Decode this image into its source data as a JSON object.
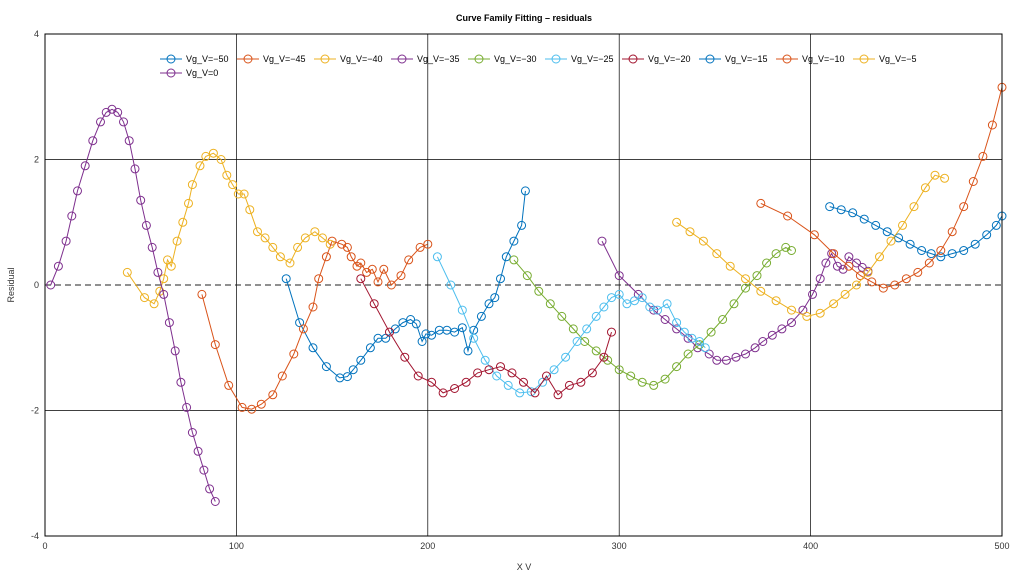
{
  "chart_data": {
    "type": "line",
    "title": "Curve Family Fitting – residuals",
    "xlabel": "X V",
    "ylabel": "Residual",
    "xlim": [
      0,
      500
    ],
    "ylim": [
      -4,
      4
    ],
    "xticks": [
      0,
      100,
      200,
      300,
      400,
      500
    ],
    "yticks": [
      -4,
      -2,
      0,
      2,
      4
    ],
    "grid": true,
    "legend_position": "top",
    "series": [
      {
        "name": "Vg_V=−50",
        "color": "#0072bd",
        "x": [
          126,
          133,
          140,
          147,
          154,
          158,
          161,
          165,
          170,
          174,
          178,
          183,
          187,
          191,
          194,
          197,
          199,
          202,
          206,
          210,
          214,
          218,
          221,
          224,
          228,
          232,
          235,
          238,
          241,
          245,
          249,
          251
        ],
        "y": [
          0.1,
          -0.6,
          -1.0,
          -1.3,
          -1.48,
          -1.46,
          -1.35,
          -1.2,
          -1.0,
          -0.85,
          -0.85,
          -0.7,
          -0.6,
          -0.55,
          -0.62,
          -0.9,
          -0.78,
          -0.8,
          -0.72,
          -0.72,
          -0.75,
          -0.68,
          -1.05,
          -0.72,
          -0.5,
          -0.3,
          -0.2,
          0.1,
          0.45,
          0.7,
          0.95,
          1.5
        ]
      },
      {
        "name": "Vg_V=−45",
        "color": "#d95319",
        "x": [
          82,
          89,
          96,
          103,
          108,
          113,
          119,
          124,
          130,
          135,
          140,
          143,
          147,
          150,
          155,
          158,
          160,
          163,
          165,
          168,
          171,
          174,
          177,
          181,
          186,
          190,
          196,
          200
        ],
        "y": [
          -0.15,
          -0.95,
          -1.6,
          -1.95,
          -1.98,
          -1.9,
          -1.75,
          -1.45,
          -1.1,
          -0.7,
          -0.35,
          0.1,
          0.45,
          0.7,
          0.65,
          0.6,
          0.45,
          0.3,
          0.35,
          0.2,
          0.25,
          0.05,
          0.25,
          0.0,
          0.15,
          0.4,
          0.6,
          0.65
        ]
      },
      {
        "name": "Vg_V=−40",
        "color": "#edb120",
        "x": [
          43,
          52,
          57,
          60,
          62,
          64,
          66,
          69,
          72,
          75,
          77,
          81,
          84,
          88,
          92,
          95,
          98,
          101,
          104,
          107,
          111,
          115,
          119,
          123,
          128,
          132,
          136,
          141,
          145,
          149
        ],
        "y": [
          0.2,
          -0.2,
          -0.3,
          -0.1,
          0.1,
          0.4,
          0.3,
          0.7,
          1.0,
          1.3,
          1.6,
          1.9,
          2.05,
          2.1,
          2.0,
          1.75,
          1.6,
          1.45,
          1.45,
          1.2,
          0.85,
          0.75,
          0.6,
          0.45,
          0.35,
          0.6,
          0.75,
          0.85,
          0.75,
          0.65
        ]
      },
      {
        "name": "Vg_V=−35",
        "color": "#7e2f8e",
        "x": [
          291,
          300,
          310,
          318,
          324,
          330,
          336,
          341,
          347,
          351,
          356,
          361,
          366,
          371,
          375,
          380,
          385,
          390,
          396,
          401,
          405,
          408,
          411,
          414,
          417,
          420,
          424,
          427,
          430
        ],
        "y": [
          0.7,
          0.15,
          -0.15,
          -0.4,
          -0.55,
          -0.7,
          -0.85,
          -1.0,
          -1.1,
          -1.2,
          -1.2,
          -1.15,
          -1.1,
          -1.0,
          -0.9,
          -0.8,
          -0.7,
          -0.6,
          -0.4,
          -0.15,
          0.1,
          0.35,
          0.5,
          0.3,
          0.25,
          0.45,
          0.35,
          0.28,
          0.22
        ]
      },
      {
        "name": "Vg_V=−30",
        "color": "#77ac30",
        "x": [
          245,
          252,
          258,
          264,
          270,
          276,
          282,
          288,
          294,
          300,
          306,
          312,
          318,
          324,
          330,
          336,
          342,
          348,
          354,
          360,
          366,
          372,
          377,
          382,
          387,
          390
        ],
        "y": [
          0.4,
          0.15,
          -0.1,
          -0.3,
          -0.5,
          -0.7,
          -0.9,
          -1.05,
          -1.2,
          -1.35,
          -1.45,
          -1.55,
          -1.6,
          -1.5,
          -1.3,
          -1.1,
          -0.95,
          -0.75,
          -0.55,
          -0.3,
          -0.05,
          0.15,
          0.35,
          0.5,
          0.6,
          0.55
        ]
      },
      {
        "name": "Vg_V=−25",
        "color": "#4dbeee",
        "x": [
          205,
          212,
          218,
          224,
          230,
          236,
          242,
          248,
          254,
          260,
          266,
          272,
          278,
          283,
          288,
          292,
          296,
          300,
          304,
          308,
          312,
          316,
          320,
          325,
          330,
          334,
          338,
          342,
          345
        ],
        "y": [
          0.45,
          0.0,
          -0.4,
          -0.85,
          -1.2,
          -1.45,
          -1.6,
          -1.72,
          -1.7,
          -1.55,
          -1.35,
          -1.15,
          -0.9,
          -0.7,
          -0.5,
          -0.35,
          -0.2,
          -0.15,
          -0.3,
          -0.25,
          -0.2,
          -0.35,
          -0.4,
          -0.3,
          -0.6,
          -0.75,
          -0.85,
          -0.9,
          -1.0
        ]
      },
      {
        "name": "Vg_V=−20",
        "color": "#a2142f",
        "x": [
          165,
          172,
          180,
          188,
          195,
          202,
          208,
          214,
          220,
          226,
          232,
          238,
          244,
          250,
          256,
          262,
          268,
          274,
          280,
          286,
          292,
          296
        ],
        "y": [
          0.1,
          -0.3,
          -0.75,
          -1.15,
          -1.45,
          -1.55,
          -1.72,
          -1.65,
          -1.55,
          -1.4,
          -1.35,
          -1.3,
          -1.4,
          -1.55,
          -1.72,
          -1.45,
          -1.75,
          -1.6,
          -1.55,
          -1.4,
          -1.15,
          -0.75
        ]
      },
      {
        "name": "Vg_V=−15",
        "color": "#0072bd",
        "x": [
          410,
          416,
          422,
          428,
          434,
          440,
          446,
          452,
          458,
          463,
          468,
          474,
          480,
          486,
          492,
          497,
          500
        ],
        "y": [
          1.25,
          1.2,
          1.15,
          1.05,
          0.95,
          0.85,
          0.75,
          0.65,
          0.55,
          0.5,
          0.45,
          0.5,
          0.55,
          0.65,
          0.8,
          0.95,
          1.1
        ]
      },
      {
        "name": "Vg_V=−10",
        "color": "#d95319",
        "x": [
          374,
          388,
          402,
          412,
          420,
          426,
          432,
          438,
          444,
          450,
          456,
          462,
          468,
          474,
          480,
          485,
          490,
          495,
          500
        ],
        "y": [
          1.3,
          1.1,
          0.8,
          0.5,
          0.3,
          0.15,
          0.05,
          -0.05,
          0.0,
          0.1,
          0.2,
          0.35,
          0.55,
          0.85,
          1.25,
          1.65,
          2.05,
          2.55,
          3.15
        ]
      },
      {
        "name": "Vg_V=−5",
        "color": "#edb120",
        "x": [
          330,
          337,
          344,
          351,
          358,
          366,
          374,
          382,
          390,
          398,
          405,
          412,
          418,
          424,
          430,
          436,
          442,
          448,
          454,
          460,
          465,
          470
        ],
        "y": [
          1.0,
          0.85,
          0.7,
          0.5,
          0.3,
          0.1,
          -0.1,
          -0.25,
          -0.4,
          -0.5,
          -0.45,
          -0.3,
          -0.15,
          0.0,
          0.2,
          0.45,
          0.7,
          0.95,
          1.25,
          1.55,
          1.75,
          1.7
        ]
      },
      {
        "name": "Vg_V=0",
        "color": "#7e2f8e",
        "x": [
          3,
          7,
          11,
          14,
          17,
          21,
          25,
          29,
          32,
          35,
          38,
          41,
          44,
          47,
          50,
          53,
          56,
          59,
          62,
          65,
          68,
          71,
          74,
          77,
          80,
          83,
          86,
          89
        ],
        "y": [
          0.0,
          0.3,
          0.7,
          1.1,
          1.5,
          1.9,
          2.3,
          2.6,
          2.75,
          2.8,
          2.75,
          2.6,
          2.3,
          1.85,
          1.35,
          0.95,
          0.6,
          0.2,
          -0.15,
          -0.6,
          -1.05,
          -1.55,
          -1.95,
          -2.35,
          -2.65,
          -2.95,
          -3.25,
          -3.45
        ]
      }
    ]
  }
}
